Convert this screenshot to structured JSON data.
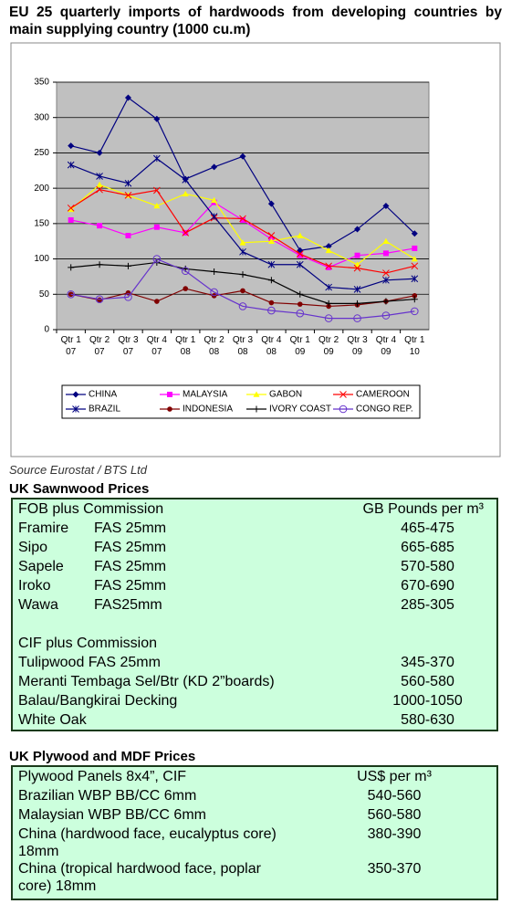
{
  "chart_data": {
    "type": "line",
    "title": "EU 25 quarterly imports of hardwoods from developing countries by main supplying country (1000 cu.m)",
    "categories": [
      "Qtr 1 07",
      "Qtr 2 07",
      "Qtr 3 07",
      "Qtr 4 07",
      "Qtr 1 08",
      "Qtr 2 08",
      "Qtr 3 08",
      "Qtr 4 08",
      "Qtr 1 09",
      "Qtr 2 09",
      "Qtr 3 09",
      "Qtr 4 09",
      "Qtr 1 10"
    ],
    "ylim": [
      0,
      350
    ],
    "yticks": [
      0,
      50,
      100,
      150,
      200,
      250,
      300,
      350
    ],
    "grid": true,
    "series": [
      {
        "name": "CHINA",
        "color": "#000080",
        "marker": "diamond",
        "values": [
          260,
          250,
          328,
          298,
          213,
          230,
          245,
          178,
          112,
          118,
          142,
          175,
          136
        ]
      },
      {
        "name": "MALAYSIA",
        "color": "#ff00ff",
        "marker": "square",
        "values": [
          155,
          147,
          133,
          145,
          137,
          180,
          155,
          128,
          105,
          88,
          105,
          108,
          115
        ]
      },
      {
        "name": "GABON",
        "color": "#ffff00",
        "marker": "triangle",
        "values": [
          170,
          205,
          190,
          175,
          192,
          183,
          123,
          125,
          133,
          112,
          92,
          125,
          100
        ]
      },
      {
        "name": "CAMEROON",
        "color": "#ff0000",
        "marker": "x",
        "values": [
          172,
          198,
          190,
          197,
          137,
          158,
          157,
          133,
          107,
          90,
          87,
          80,
          90
        ]
      },
      {
        "name": "BRAZIL",
        "color": "#000080",
        "marker": "asterisk",
        "values": [
          233,
          217,
          207,
          242,
          212,
          160,
          110,
          92,
          92,
          60,
          57,
          70,
          72
        ]
      },
      {
        "name": "INDONESIA",
        "color": "#800000",
        "marker": "circle",
        "values": [
          50,
          42,
          52,
          40,
          58,
          48,
          55,
          38,
          36,
          33,
          35,
          40,
          48
        ]
      },
      {
        "name": "IVORY COAST",
        "color": "#000000",
        "marker": "plus",
        "values": [
          88,
          92,
          90,
          95,
          86,
          82,
          78,
          70,
          50,
          37,
          37,
          40,
          43
        ]
      },
      {
        "name": "CONGO REP.",
        "color": "#6633cc",
        "marker": "open-circle",
        "values": [
          50,
          43,
          46,
          100,
          83,
          53,
          33,
          27,
          23,
          16,
          16,
          20,
          26
        ]
      }
    ]
  },
  "source": "Source Eurostat / BTS Ltd",
  "sawnwood": {
    "title": "UK Sawnwood Prices",
    "groups": [
      {
        "header": "FOB plus Commission",
        "unit": "GB Pounds per m³",
        "rows": [
          {
            "name": "Framire",
            "grade": "FAS 25mm",
            "price": "465-475"
          },
          {
            "name": "Sipo",
            "grade": "FAS 25mm",
            "price": "665-685"
          },
          {
            "name": "Sapele",
            "grade": "FAS 25mm",
            "price": "570-580"
          },
          {
            "name": "Iroko",
            "grade": "FAS 25mm",
            "price": "670-690"
          },
          {
            "name": "Wawa",
            "grade": "FAS25mm",
            "price": "285-305"
          }
        ]
      },
      {
        "header": "CIF plus Commission",
        "rows": [
          {
            "name": "Tulipwood FAS 25mm",
            "price": "345-370"
          },
          {
            "name": "Meranti Tembaga Sel/Btr (KD 2”boards)",
            "price": "560-580"
          },
          {
            "name": "Balau/Bangkirai Decking",
            "price": "1000-1050"
          },
          {
            "name": "White Oak",
            "price": "580-630"
          }
        ]
      }
    ]
  },
  "plywood": {
    "title": "UK Plywood and MDF Prices",
    "header": "Plywood Panels 8x4”, CIF",
    "unit": "US$ per m³",
    "rows": [
      {
        "name": "Brazilian WBP BB/CC 6mm",
        "price": "540-560"
      },
      {
        "name": "Malaysian WBP BB/CC 6mm",
        "price": "560-580"
      },
      {
        "name": "China (hardwood face, eucalyptus core) 18mm",
        "price": "380-390"
      },
      {
        "name": "China (tropical hardwood face, poplar core) 18mm",
        "price": "350-370"
      }
    ]
  }
}
